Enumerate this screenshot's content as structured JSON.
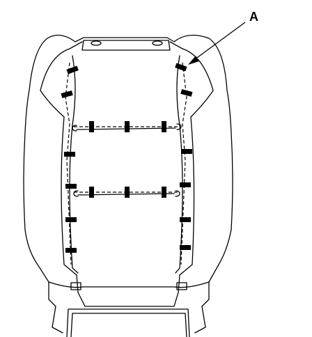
{
  "callout": {
    "label": "A"
  },
  "colors": {
    "line": "#000000",
    "background": "#ffffff"
  }
}
